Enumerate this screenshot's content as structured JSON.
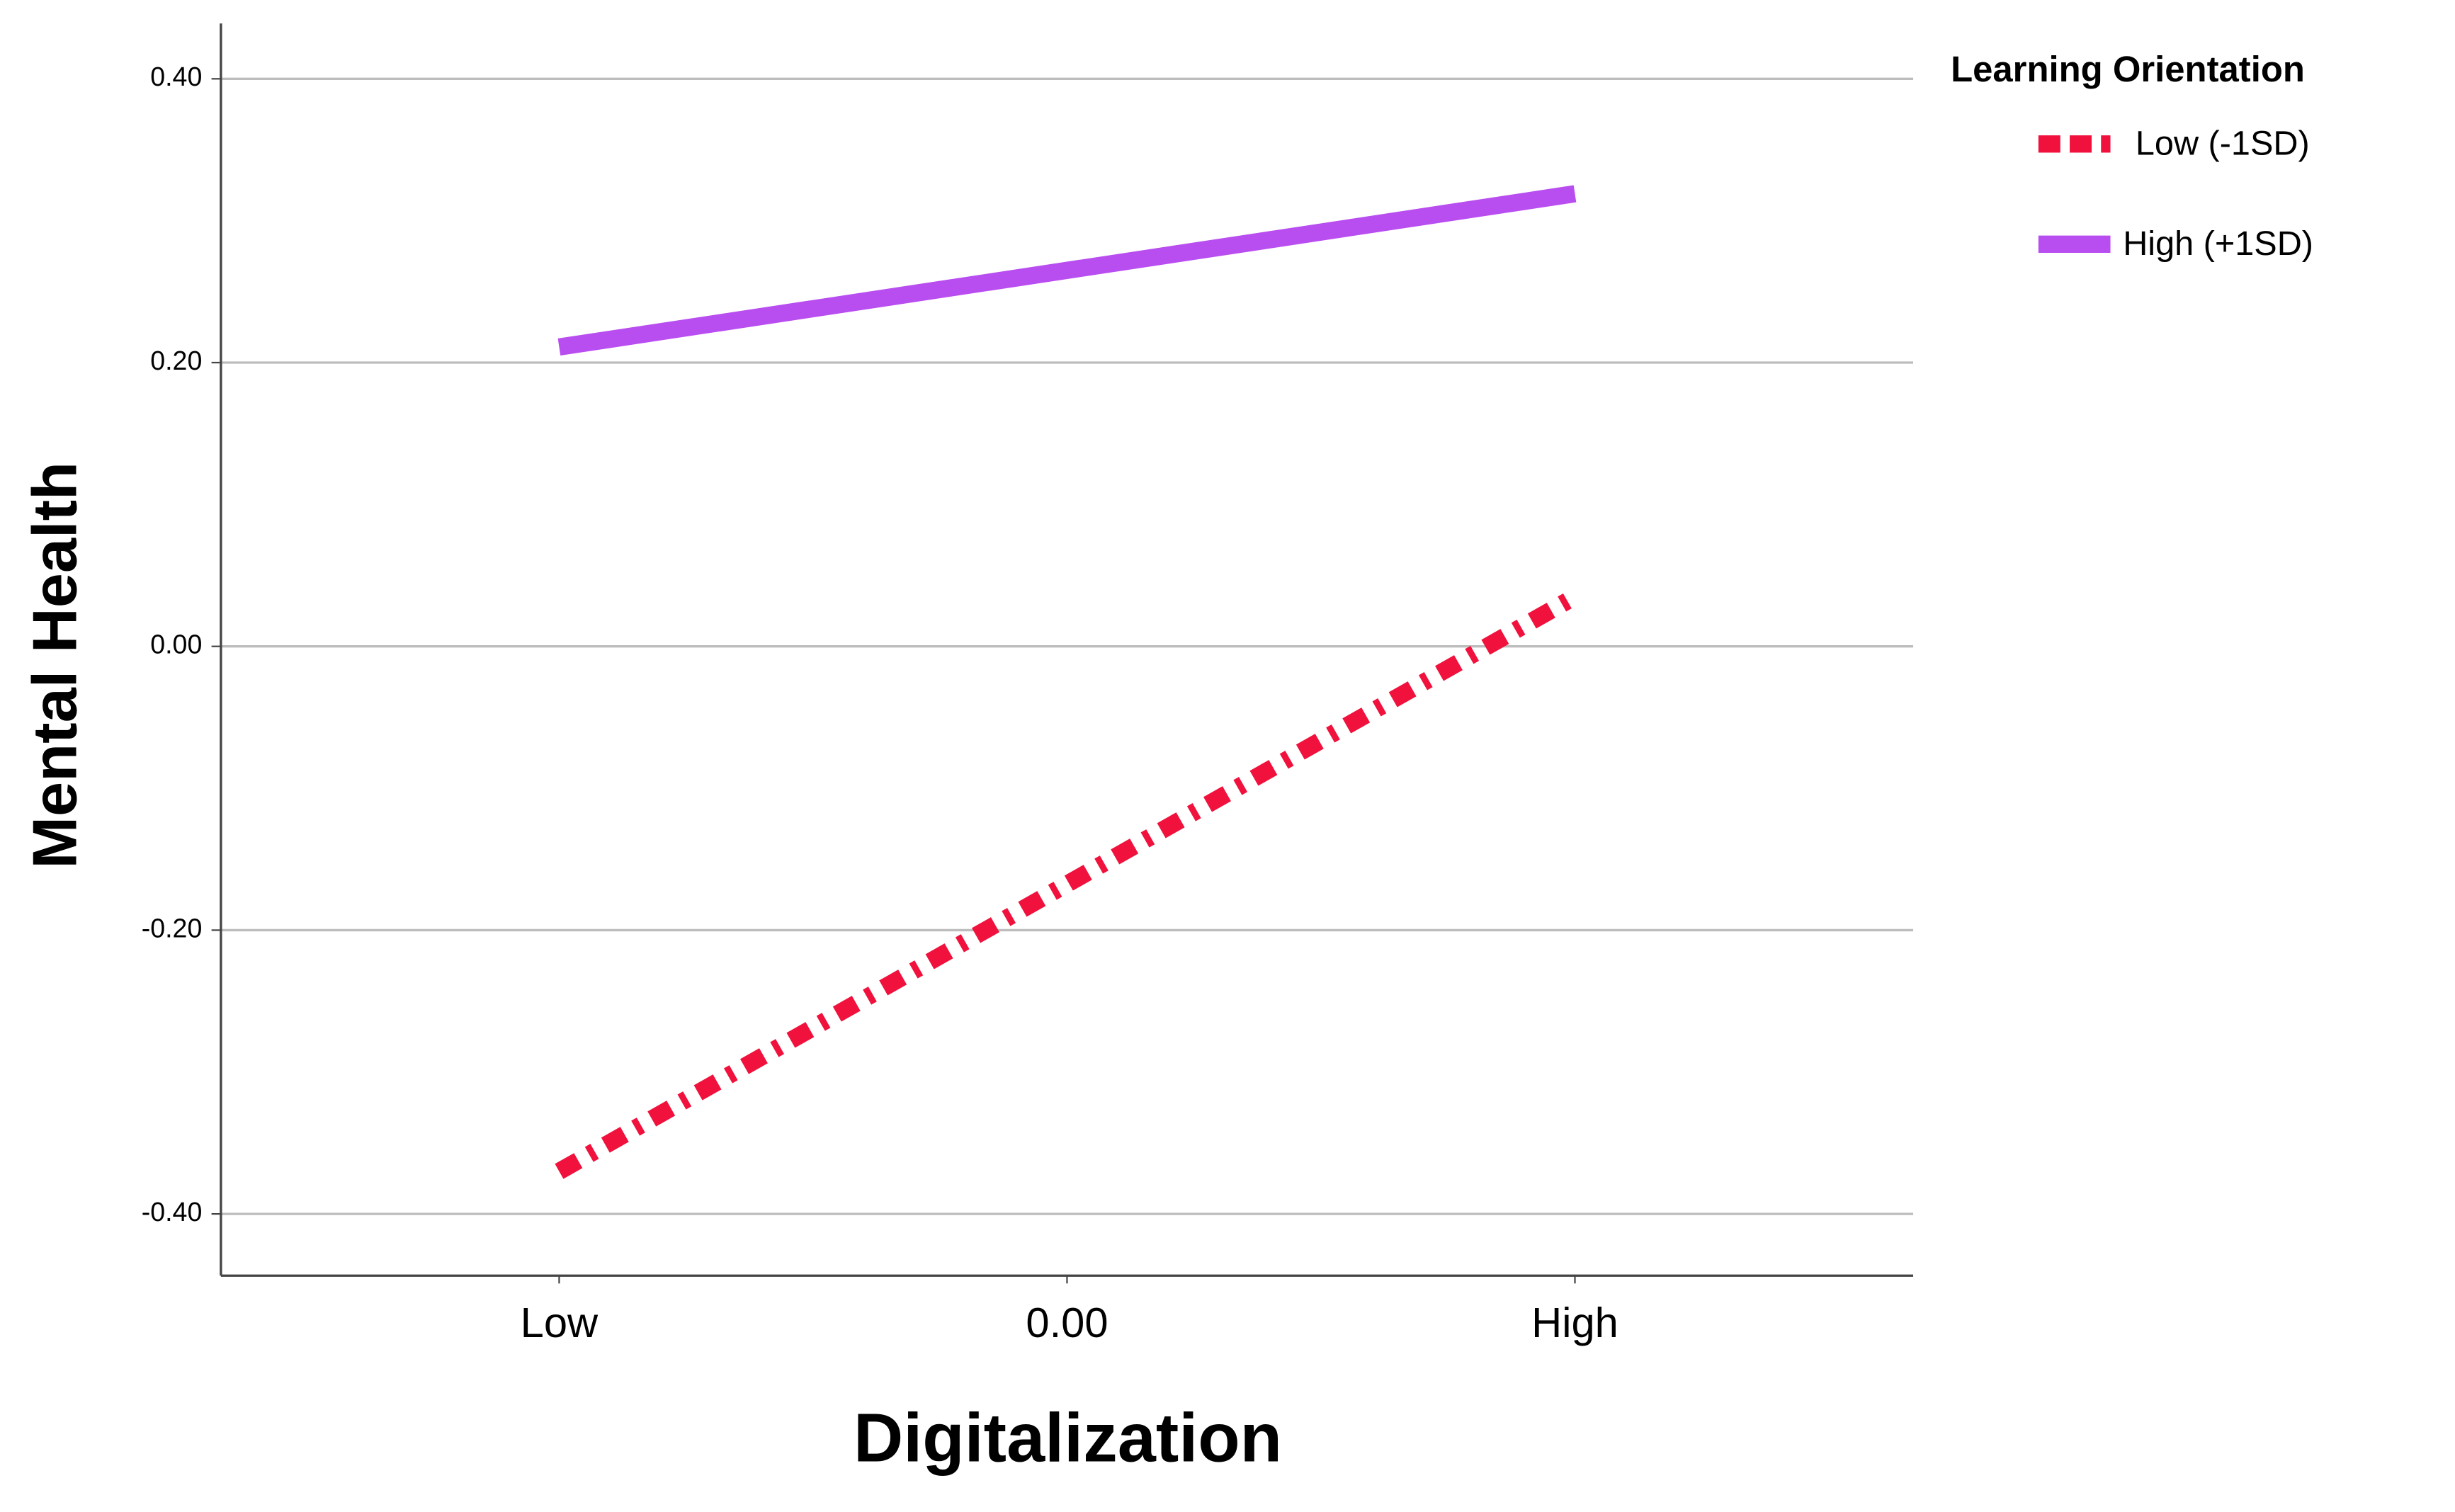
{
  "chart_data": {
    "type": "line",
    "xlabel": "Digitalization",
    "ylabel": "Mental Health",
    "legend_title": "Learning Orientation",
    "legend": "right",
    "xlim": [
      -1.666,
      1.666
    ],
    "xticks": [
      {
        "value": -1,
        "label": "Low"
      },
      {
        "value": 0,
        "label": "0.00"
      },
      {
        "value": 1,
        "label": "High"
      }
    ],
    "ylim": [
      -0.4435,
      0.439
    ],
    "yticks": [
      {
        "value": -0.4,
        "label": "-0.40"
      },
      {
        "value": -0.2,
        "label": "-0.20"
      },
      {
        "value": 0,
        "label": "0.00"
      },
      {
        "value": 0.2,
        "label": "0.20"
      },
      {
        "value": 0.4,
        "label": "0.40"
      }
    ],
    "grid": true,
    "series": [
      {
        "name": "Low (-1SD)",
        "color": "#f0113c",
        "linestyle": "dashed",
        "x": [
          -1,
          1
        ],
        "values": [
          -0.37,
          0.035
        ]
      },
      {
        "name": "High (+1SD)",
        "color": "#b84df0",
        "linestyle": "solid",
        "x": [
          -1,
          1
        ],
        "values": [
          0.211,
          0.319
        ]
      }
    ]
  }
}
